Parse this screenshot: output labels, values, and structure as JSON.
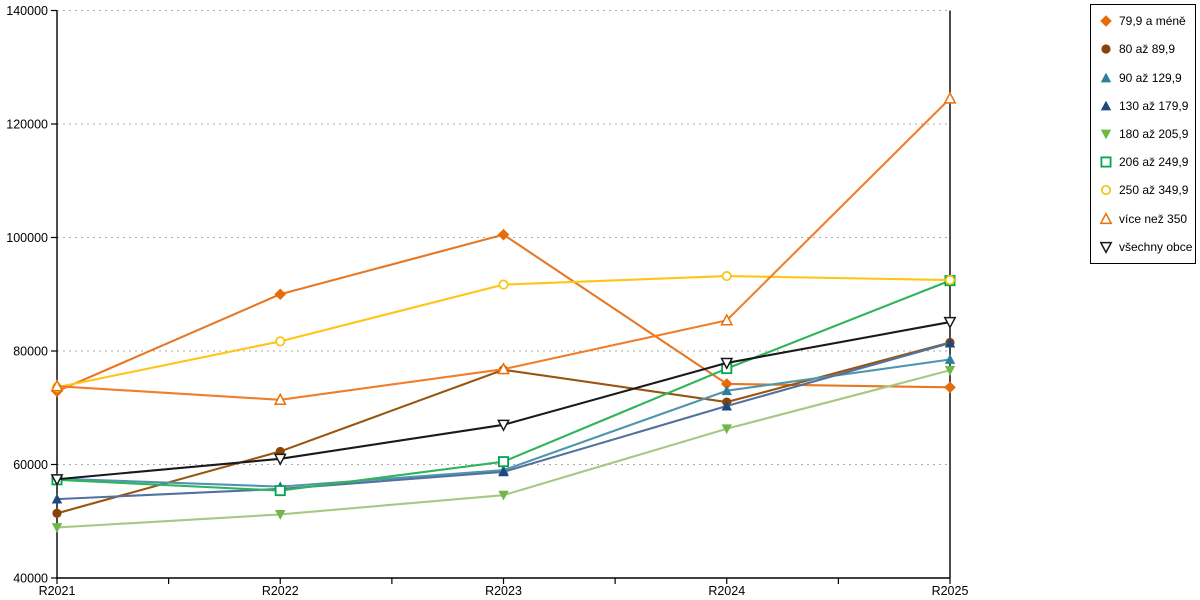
{
  "chart_data": {
    "type": "line",
    "title": "",
    "xlabel": "",
    "ylabel": "",
    "categories": [
      "R2021",
      "R2022",
      "R2023",
      "R2024",
      "R2025"
    ],
    "y_axis": {
      "min": 40000,
      "max": 140000,
      "step": 20000,
      "tick_labels": [
        "40000",
        "60000",
        "80000",
        "100000",
        "120000",
        "140000"
      ]
    },
    "grid": "horizontal-dotted",
    "legend_position": "top-right",
    "series": [
      {
        "name": "79,9 a méně",
        "marker": "diamond-filled",
        "color": "#E66C09",
        "line_color": "#E87722",
        "values": [
          72900,
          90000,
          100500,
          74200,
          73600
        ]
      },
      {
        "name": "80 až 89,9",
        "marker": "circle-filled",
        "color": "#8C4105",
        "line_color": "#9A5410",
        "values": [
          51400,
          62300,
          76700,
          71000,
          81500
        ]
      },
      {
        "name": "90 až 129,9",
        "marker": "triangle-up-filled",
        "color": "#2E7F99",
        "line_color": "#4E96AE",
        "values": [
          57500,
          56100,
          59000,
          73000,
          78500
        ]
      },
      {
        "name": "130 až 179,9",
        "marker": "triangle-up-filled",
        "color": "#1F497D",
        "line_color": "#53719F",
        "values": [
          53900,
          55700,
          58700,
          70300,
          81400
        ]
      },
      {
        "name": "180 až 205,9",
        "marker": "triangle-down-filled",
        "color": "#72B649",
        "line_color": "#A5C983",
        "values": [
          48900,
          51200,
          54600,
          66300,
          76600
        ]
      },
      {
        "name": "206 až 249,9",
        "marker": "square-open",
        "color": "#00A550",
        "line_color": "#2FB45C",
        "values": [
          57300,
          55400,
          60500,
          76900,
          92400
        ]
      },
      {
        "name": "250 až 349,9",
        "marker": "circle-open",
        "color": "#F5C50F",
        "line_color": "#FFC516",
        "values": [
          73600,
          81700,
          91700,
          93200,
          92500
        ]
      },
      {
        "name": "více než 350",
        "marker": "triangle-up-open",
        "color": "#E8720C",
        "line_color": "#F07E2B",
        "values": [
          73800,
          71400,
          76800,
          85400,
          124500
        ]
      },
      {
        "name": "všechny obce",
        "marker": "triangle-down-open",
        "color": "#1A1A1A",
        "line_color": "#1A1A1A",
        "values": [
          57400,
          61000,
          67000,
          77900,
          85100
        ]
      }
    ]
  }
}
